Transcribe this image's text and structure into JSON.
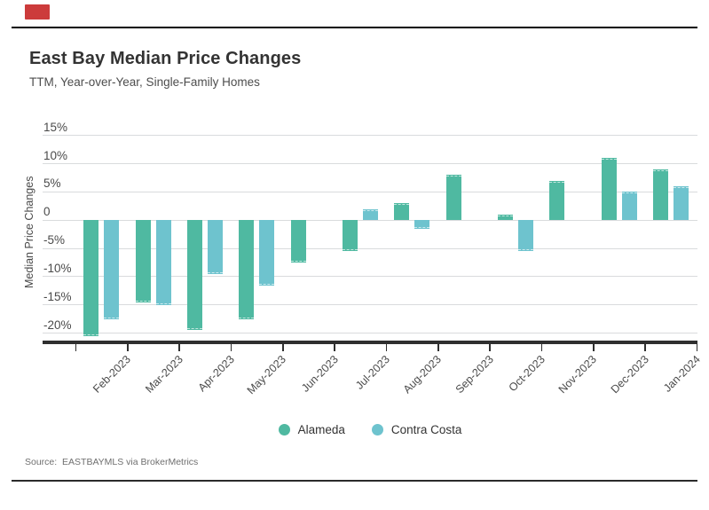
{
  "page": {
    "source_text": "Source:  EASTBAYMLS via BrokerMetrics",
    "marker_color": "#CC3B3B"
  },
  "chart_data": {
    "type": "bar",
    "title": "East Bay Median Price Changes",
    "subtitle": "TTM, Year-over-Year, Single-Family Homes",
    "ylabel": "Median Price Changes",
    "categories": [
      "Feb-2023",
      "Mar-2023",
      "Apr-2023",
      "May-2023",
      "Jun-2023",
      "Jul-2023",
      "Aug-2023",
      "Sep-2023",
      "Oct-2023",
      "Nov-2023",
      "Dec-2023",
      "Jan-2024"
    ],
    "series": [
      {
        "name": "Alameda",
        "color": "#4FB9A1",
        "values": [
          -20.5,
          -14.5,
          -19.5,
          -17.5,
          -7.5,
          -5.5,
          3,
          8,
          1,
          7,
          11,
          9
        ]
      },
      {
        "name": "Contra Costa",
        "color": "#6EC3CE",
        "values": [
          -17.5,
          -15,
          -9.5,
          -11.5,
          null,
          2,
          -1.5,
          null,
          -5.5,
          null,
          5,
          6
        ]
      }
    ],
    "yticks": [
      15,
      10,
      5,
      0,
      -5,
      -10,
      -15,
      -20
    ],
    "ytick_labels": [
      "15%",
      "10%",
      "5%",
      "0",
      "-5%",
      "-10%",
      "-15%",
      "-20%"
    ],
    "ylim": [
      -21.5,
      17
    ],
    "grid": true,
    "legend_position": "bottom",
    "units": "percent"
  }
}
